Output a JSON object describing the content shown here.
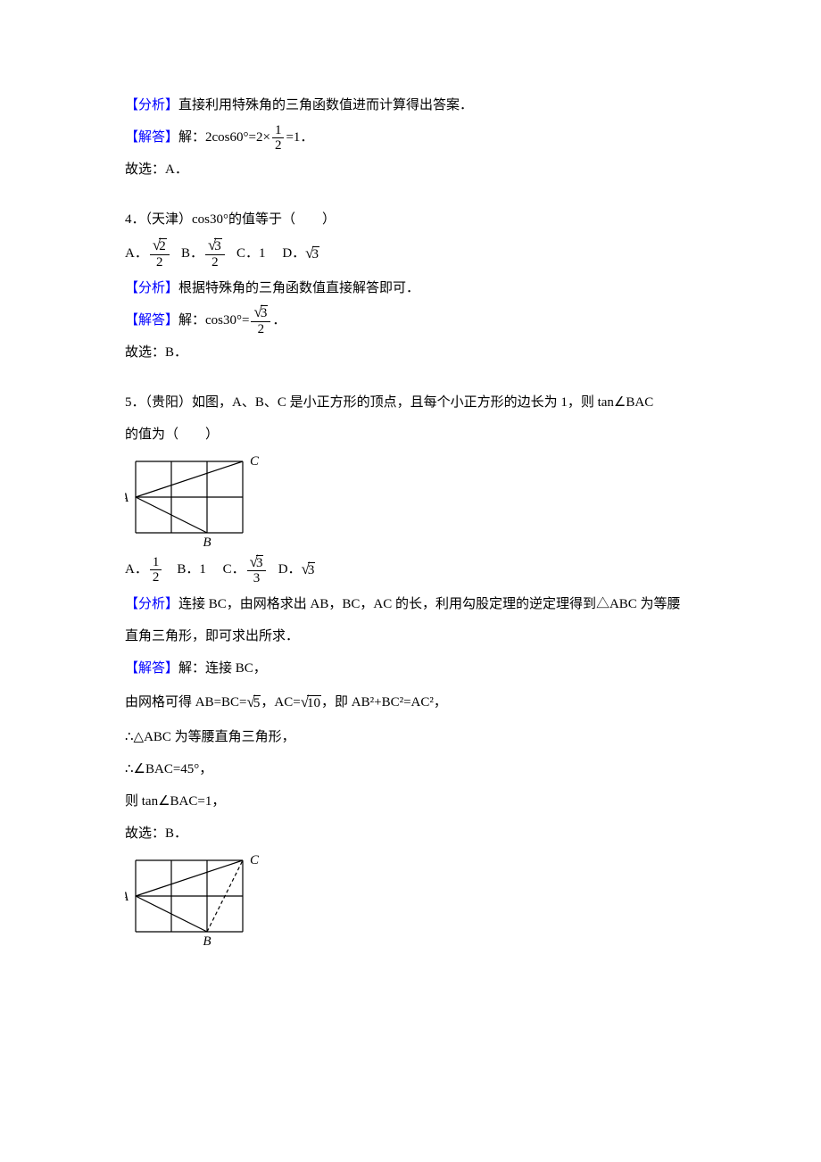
{
  "q3": {
    "analysis_label": "【分析】",
    "analysis_text": "直接利用特殊角的三角函数值进而计算得出答案．",
    "answer_label": "【解答】",
    "answer_prefix": "解：2cos60°=2×",
    "frac_num": "1",
    "frac_den": "2",
    "answer_suffix": "=1．",
    "conclusion": "故选：A．"
  },
  "q4": {
    "stem": "4．（天津）cos30°的值等于（　　）",
    "optA_pre": "A．",
    "optA_num": "2",
    "optA_den": "2",
    "optA_rad": "√",
    "optB_pre": "B．",
    "optB_num": "3",
    "optB_den": "2",
    "optC": "C．1",
    "optD_pre": "D．",
    "optD_rad": "3",
    "analysis_label": "【分析】",
    "analysis_text": "根据特殊角的三角函数值直接解答即可．",
    "answer_label": "【解答】",
    "answer_pre": "解：cos30°=",
    "answer_num": "3",
    "answer_den": "2",
    "answer_suf": "．",
    "conclusion": "故选：B．"
  },
  "q5": {
    "stem1": "5．（贵阳）如图，A、B、C 是小正方形的顶点，且每个小正方形的边长为 1，则 tan∠BAC",
    "stem2": "的值为（　　）",
    "fig": {
      "cell": 40,
      "cols": 3,
      "rows": 2,
      "A": [
        0,
        1
      ],
      "B": [
        2,
        2
      ],
      "C": [
        3,
        0
      ],
      "label_A": "A",
      "label_B": "B",
      "label_C": "C",
      "stroke": "#000000"
    },
    "optA_pre": "A．",
    "optA_num": "1",
    "optA_den": "2",
    "optB": "B．1",
    "optC_pre": "C．",
    "optC_num": "3",
    "optC_den": "3",
    "optD_pre": "D．",
    "optD_rad": "3",
    "analysis_label": "【分析】",
    "analysis_text1": "连接 BC，由网格求出 AB，BC，AC 的长，利用勾股定理的逆定理得到△ABC 为等腰",
    "analysis_text2": "直角三角形，即可求出所求．",
    "answer_label": "【解答】",
    "answer_line1": "解：连接 BC，",
    "answer_line2a": "由网格可得 AB=BC=",
    "sqrt5": "5",
    "answer_line2b": "，AC=",
    "sqrt10": "10",
    "answer_line2c": "，即 AB²+BC²=AC²，",
    "answer_line3": "∴△ABC 为等腰直角三角形，",
    "answer_line4": "∴∠BAC=45°，",
    "answer_line5": "则 tan∠BAC=1，",
    "conclusion": "故选：B．"
  }
}
